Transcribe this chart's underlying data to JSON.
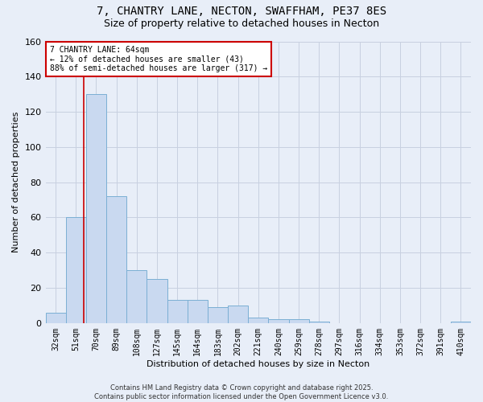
{
  "title1": "7, CHANTRY LANE, NECTON, SWAFFHAM, PE37 8ES",
  "title2": "Size of property relative to detached houses in Necton",
  "xlabel": "Distribution of detached houses by size in Necton",
  "ylabel": "Number of detached properties",
  "categories": [
    "32sqm",
    "51sqm",
    "70sqm",
    "89sqm",
    "108sqm",
    "127sqm",
    "145sqm",
    "164sqm",
    "183sqm",
    "202sqm",
    "221sqm",
    "240sqm",
    "259sqm",
    "278sqm",
    "297sqm",
    "316sqm",
    "334sqm",
    "353sqm",
    "372sqm",
    "391sqm",
    "410sqm"
  ],
  "values": [
    6,
    60,
    130,
    72,
    30,
    25,
    13,
    13,
    9,
    10,
    3,
    2,
    2,
    1,
    0,
    0,
    0,
    0,
    0,
    0,
    1
  ],
  "bar_color": "#c9d9f0",
  "bar_edge_color": "#7bafd4",
  "bar_width": 1.0,
  "vline_x": 1.38,
  "vline_color": "#cc0000",
  "annotation_text": "7 CHANTRY LANE: 64sqm\n← 12% of detached houses are smaller (43)\n88% of semi-detached houses are larger (317) →",
  "annotation_box_color": "#cc0000",
  "ylim": [
    0,
    160
  ],
  "yticks": [
    0,
    20,
    40,
    60,
    80,
    100,
    120,
    140,
    160
  ],
  "background_color": "#e8eef8",
  "plot_bg_color": "#e8eef8",
  "grid_color": "#c8d0e0",
  "footer_text": "Contains HM Land Registry data © Crown copyright and database right 2025.\nContains public sector information licensed under the Open Government Licence v3.0.",
  "title_fontsize": 10,
  "subtitle_fontsize": 9,
  "tick_fontsize": 7,
  "ylabel_fontsize": 8,
  "xlabel_fontsize": 8,
  "footer_fontsize": 6
}
